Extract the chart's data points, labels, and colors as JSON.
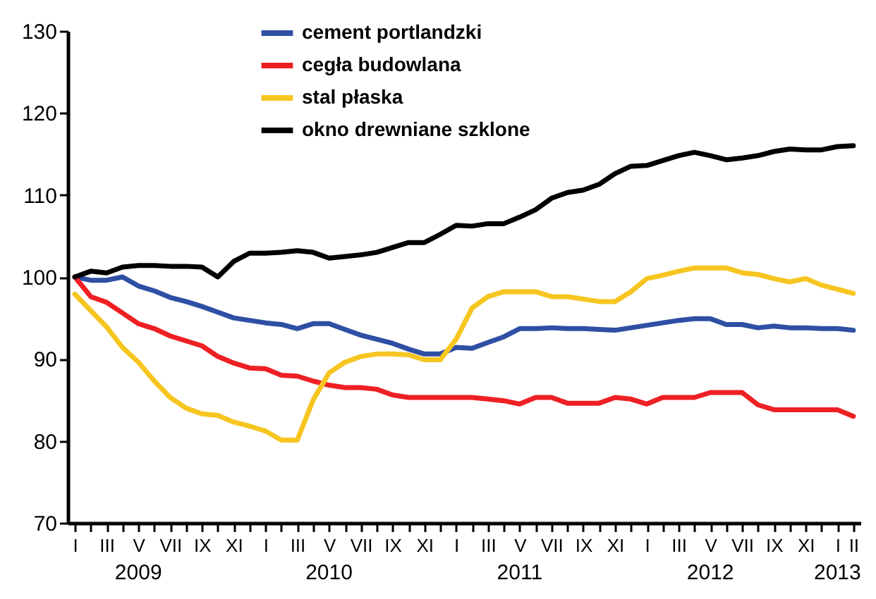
{
  "chart_data": {
    "type": "line",
    "categories": [
      "I",
      null,
      "III",
      null,
      "V",
      null,
      "VII",
      null,
      "IX",
      null,
      "XI",
      null,
      "I",
      null,
      "III",
      null,
      "V",
      null,
      "VII",
      null,
      "IX",
      null,
      "XI",
      null,
      "I",
      null,
      "III",
      null,
      "V",
      null,
      "VII",
      null,
      "IX",
      null,
      "XI",
      null,
      "I",
      null,
      "III",
      null,
      "V",
      null,
      "VII",
      null,
      "IX",
      null,
      "XI",
      null,
      "I",
      "II"
    ],
    "series": [
      {
        "name": "cement portlandzki",
        "color": "#2e4fa3",
        "values": [
          100,
          99.6,
          99.6,
          100,
          98.9,
          98.3,
          97.5,
          97,
          96.4,
          95.7,
          95,
          94.7,
          94.4,
          94.2,
          93.7,
          94.3,
          94.3,
          93.6,
          92.9,
          92.4,
          91.9,
          91.2,
          90.6,
          90.6,
          91.4,
          91.3,
          92,
          92.7,
          93.7,
          93.7,
          93.8,
          93.7,
          93.7,
          93.6,
          93.5,
          93.8,
          94.1,
          94.4,
          94.7,
          94.9,
          94.9,
          94.2,
          94.2,
          93.8,
          94,
          93.8,
          93.8,
          93.7,
          93.7,
          93.5
        ]
      },
      {
        "name": "cegła budowlana",
        "color": "#ee2024",
        "values": [
          100,
          97.6,
          96.9,
          95.6,
          94.3,
          93.7,
          92.8,
          92.2,
          91.6,
          90.3,
          89.5,
          88.9,
          88.8,
          88,
          87.9,
          87.3,
          86.8,
          86.5,
          86.5,
          86.3,
          85.6,
          85.3,
          85.3,
          85.3,
          85.3,
          85.3,
          85.1,
          84.9,
          84.5,
          85.3,
          85.3,
          84.6,
          84.6,
          84.6,
          85.3,
          85.1,
          84.5,
          85.3,
          85.3,
          85.3,
          85.9,
          85.9,
          85.9,
          84.4,
          83.8,
          83.8,
          83.8,
          83.8,
          83.8,
          83
        ]
      },
      {
        "name": "stal płaska",
        "color": "#f7c520",
        "values": [
          97.9,
          95.9,
          93.9,
          91.4,
          89.6,
          87.3,
          85.3,
          84,
          83.3,
          83.1,
          82.3,
          81.8,
          81.2,
          80.1,
          80.1,
          85,
          88.3,
          89.6,
          90.3,
          90.6,
          90.6,
          90.5,
          89.9,
          89.9,
          92.4,
          96.2,
          97.6,
          98.2,
          98.2,
          98.2,
          97.6,
          97.6,
          97.3,
          97,
          97,
          98.2,
          99.8,
          100.2,
          100.7,
          101.1,
          101.1,
          101.1,
          100.5,
          100.3,
          99.8,
          99.4,
          99.8,
          99,
          98.5,
          98
        ]
      },
      {
        "name": "okno drewniane szklone",
        "color": "#000000",
        "values": [
          100,
          100.7,
          100.5,
          101.2,
          101.4,
          101.4,
          101.3,
          101.3,
          101.2,
          100,
          101.9,
          102.9,
          102.9,
          103,
          103.2,
          103,
          102.3,
          102.5,
          102.7,
          103,
          103.6,
          104.2,
          104.2,
          105.2,
          106.3,
          106.2,
          106.5,
          106.5,
          107.3,
          108.2,
          109.6,
          110.3,
          110.6,
          111.3,
          112.6,
          113.5,
          113.6,
          114.2,
          114.8,
          115.2,
          114.8,
          114.3,
          114.5,
          114.8,
          115.3,
          115.6,
          115.5,
          115.5,
          115.9,
          116
        ]
      }
    ],
    "ylim": [
      70,
      130
    ],
    "yticks": [
      70,
      80,
      90,
      100,
      110,
      120,
      130
    ],
    "annotations": [
      "2009",
      "2010",
      "2011",
      "2012",
      "2013"
    ],
    "grid": false,
    "legend": "top",
    "marker": "none",
    "line_style": "solid"
  }
}
